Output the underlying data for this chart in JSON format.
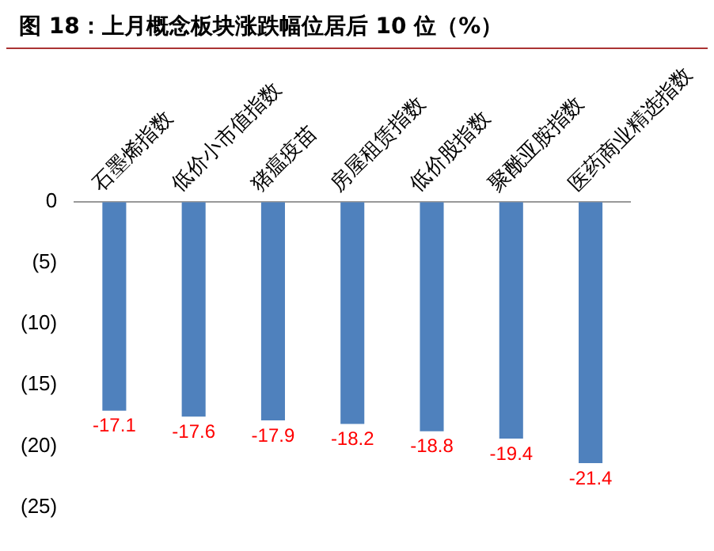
{
  "chart_data": {
    "type": "bar",
    "title": "图 18：上月概念板块涨跌幅位居后 10 位（%）",
    "categories": [
      "石墨烯指数",
      "低价小市值指数",
      "猪瘟疫苗",
      "房屋租赁指数",
      "低价股指数",
      "聚酰亚胺指数",
      "医药商业精选指数"
    ],
    "values": [
      -17.1,
      -17.6,
      -17.9,
      -18.2,
      -18.8,
      -19.4,
      -21.4
    ],
    "color": "#4f81bd",
    "ylim": [
      -25,
      0
    ],
    "yticks": [
      {
        "value": 0,
        "label": "0"
      },
      {
        "value": -5,
        "label": "(5)"
      },
      {
        "value": -10,
        "label": "(10)"
      },
      {
        "value": -15,
        "label": "(15)"
      },
      {
        "value": -20,
        "label": "(20)"
      },
      {
        "value": -25,
        "label": "(25)"
      }
    ],
    "data_labels": true,
    "grid": false,
    "legend": false
  }
}
